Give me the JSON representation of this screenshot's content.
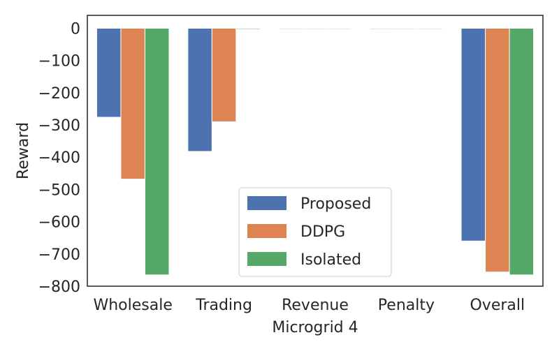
{
  "chart_data": {
    "type": "bar",
    "xlabel": "Microgrid 4",
    "ylabel": "Reward",
    "categories": [
      "Wholesale",
      "Trading",
      "Revenue",
      "Penalty",
      "Overall"
    ],
    "series": [
      {
        "name": "Proposed",
        "color": "#4c72b0",
        "values": [
          -276,
          -382,
          0,
          -2,
          -660
        ]
      },
      {
        "name": "DDPG",
        "color": "#dd8452",
        "values": [
          -468,
          -290,
          0,
          -2,
          -756
        ]
      },
      {
        "name": "Isolated",
        "color": "#55a868",
        "values": [
          -765,
          -3,
          0,
          -2,
          -765
        ]
      }
    ],
    "ylim": [
      -800,
      40
    ],
    "yticks": [
      0,
      -100,
      -200,
      -300,
      -400,
      -500,
      -600,
      -700,
      -800
    ],
    "grid": false,
    "legend_position": "lower-center"
  }
}
